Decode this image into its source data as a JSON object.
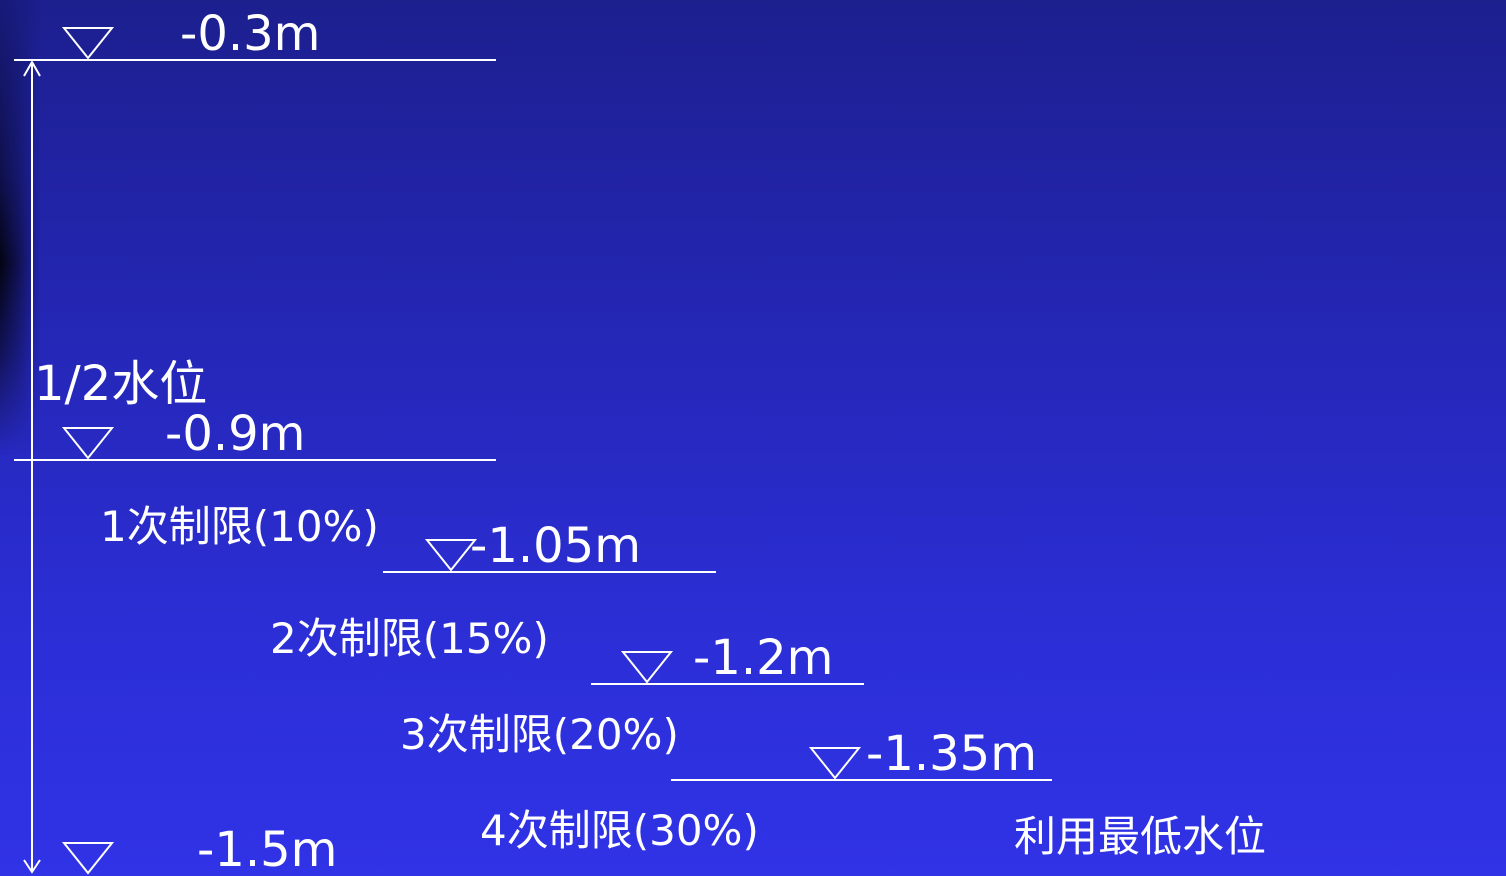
{
  "levels": {
    "top_value": "-0.3m",
    "half_title": "1/2水位",
    "half_value": "-0.9m",
    "limit1_label": "1次制限(10%)",
    "limit1_value": "-1.05m",
    "limit2_label": "2次制限(15%)",
    "limit2_value": "-1.2m",
    "limit3_label": "3次制限(20%)",
    "limit3_value": "-1.35m",
    "limit4_label": "4次制限(30%)",
    "bottom_value": "-1.5m",
    "min_level_label": "利用最低水位"
  },
  "colors": {
    "background_top": "#1c1f8e",
    "background_bottom": "#3033e6",
    "line": "#ffffff",
    "text": "#ffffff"
  }
}
